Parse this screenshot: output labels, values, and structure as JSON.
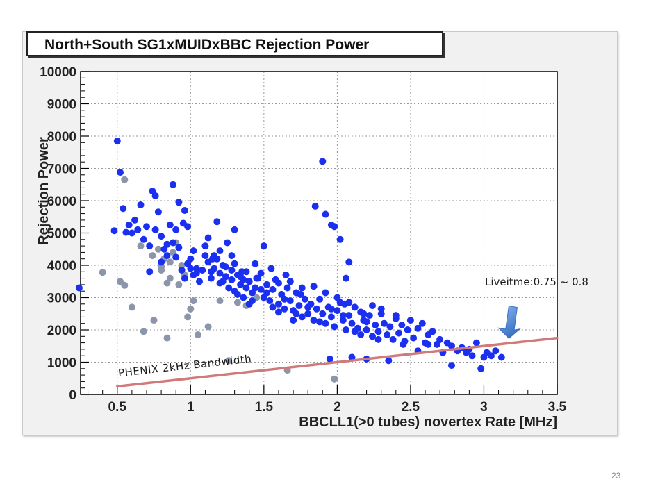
{
  "slide_number": "23",
  "chart_data": {
    "type": "scatter",
    "title": "North+South SG1xMUIDxBBC Rejection Power",
    "xlabel": "BBCLL1(>0 tubes) novertex Rate [MHz]",
    "ylabel": "Rejection Power",
    "xlim": [
      0.25,
      3.5
    ],
    "ylim": [
      0,
      10000
    ],
    "x_ticks": [
      0.5,
      1,
      1.5,
      2,
      2.5,
      3,
      3.5
    ],
    "y_ticks": [
      0,
      1000,
      2000,
      3000,
      4000,
      5000,
      6000,
      7000,
      8000,
      9000,
      10000
    ],
    "grid": true,
    "colors": {
      "blue": "#1a2ff0",
      "gray": "#8c96aa",
      "line": "#d07a7a",
      "arrow": "#4f86d6"
    },
    "series": [
      {
        "color": "blue",
        "points": [
          [
            0.5,
            7850
          ],
          [
            0.52,
            6880
          ],
          [
            0.54,
            5760
          ],
          [
            0.56,
            5020
          ],
          [
            0.48,
            5070
          ],
          [
            0.58,
            5250
          ],
          [
            0.6,
            5000
          ],
          [
            0.62,
            5400
          ],
          [
            0.64,
            5100
          ],
          [
            0.66,
            5870
          ],
          [
            0.68,
            4800
          ],
          [
            0.7,
            5200
          ],
          [
            0.72,
            4600
          ],
          [
            0.74,
            6300
          ],
          [
            0.76,
            6150
          ],
          [
            0.78,
            5650
          ],
          [
            0.8,
            4900
          ],
          [
            0.82,
            4500
          ],
          [
            0.84,
            4300
          ],
          [
            0.86,
            5250
          ],
          [
            0.88,
            4700
          ],
          [
            0.9,
            4250
          ],
          [
            0.92,
            4550
          ],
          [
            0.94,
            3850
          ],
          [
            0.96,
            3600
          ],
          [
            0.98,
            4050
          ],
          [
            1.0,
            4200
          ],
          [
            1.02,
            3700
          ],
          [
            1.04,
            3900
          ],
          [
            0.72,
            3800
          ],
          [
            0.76,
            5100
          ],
          [
            0.8,
            4100
          ],
          [
            0.84,
            4650
          ],
          [
            0.88,
            6500
          ],
          [
            0.9,
            5100
          ],
          [
            0.92,
            5950
          ],
          [
            0.96,
            5700
          ],
          [
            0.95,
            5300
          ],
          [
            0.98,
            5200
          ],
          [
            1.0,
            3900
          ],
          [
            1.02,
            4450
          ],
          [
            1.04,
            3750
          ],
          [
            1.06,
            3500
          ],
          [
            1.08,
            3850
          ],
          [
            1.1,
            4300
          ],
          [
            1.12,
            4100
          ],
          [
            1.14,
            3600
          ],
          [
            1.16,
            3900
          ],
          [
            1.18,
            4200
          ],
          [
            1.2,
            3750
          ],
          [
            1.22,
            3500
          ],
          [
            1.24,
            3950
          ],
          [
            1.26,
            3300
          ],
          [
            1.28,
            3550
          ],
          [
            1.3,
            3200
          ],
          [
            1.32,
            3700
          ],
          [
            1.34,
            3400
          ],
          [
            1.36,
            3000
          ],
          [
            1.38,
            3300
          ],
          [
            1.4,
            3500
          ],
          [
            1.42,
            3150
          ],
          [
            1.44,
            4050
          ],
          [
            1.46,
            3600
          ],
          [
            1.48,
            3250
          ],
          [
            1.5,
            3000
          ],
          [
            1.52,
            3400
          ],
          [
            1.54,
            2900
          ],
          [
            1.56,
            3250
          ],
          [
            1.58,
            3550
          ],
          [
            1.6,
            2800
          ],
          [
            1.62,
            3100
          ],
          [
            1.64,
            2650
          ],
          [
            1.66,
            3300
          ],
          [
            1.68,
            2900
          ],
          [
            1.7,
            2600
          ],
          [
            1.72,
            3150
          ],
          [
            1.74,
            2750
          ],
          [
            1.76,
            2400
          ],
          [
            1.78,
            2950
          ],
          [
            1.8,
            2500
          ],
          [
            1.82,
            2800
          ],
          [
            1.84,
            2300
          ],
          [
            1.86,
            2650
          ],
          [
            1.88,
            2950
          ],
          [
            1.9,
            2500
          ],
          [
            1.92,
            2200
          ],
          [
            1.94,
            2700
          ],
          [
            1.96,
            2400
          ],
          [
            1.98,
            2100
          ],
          [
            2.0,
            2600
          ],
          [
            2.02,
            2850
          ],
          [
            2.04,
            2300
          ],
          [
            2.06,
            2000
          ],
          [
            2.08,
            2450
          ],
          [
            2.1,
            2200
          ],
          [
            2.12,
            2700
          ],
          [
            2.14,
            2050
          ],
          [
            2.16,
            1850
          ],
          [
            2.18,
            2300
          ],
          [
            2.2,
            2000
          ],
          [
            2.22,
            2450
          ],
          [
            2.24,
            1800
          ],
          [
            2.26,
            2150
          ],
          [
            2.28,
            1950
          ],
          [
            2.3,
            2500
          ],
          [
            2.32,
            2200
          ],
          [
            2.34,
            1850
          ],
          [
            2.36,
            2100
          ],
          [
            2.38,
            1700
          ],
          [
            2.4,
            2350
          ],
          [
            2.42,
            1900
          ],
          [
            2.44,
            2150
          ],
          [
            2.46,
            1650
          ],
          [
            2.48,
            2000
          ],
          [
            2.5,
            2300
          ],
          [
            2.52,
            1750
          ],
          [
            2.55,
            2050
          ],
          [
            2.58,
            2200
          ],
          [
            2.6,
            1600
          ],
          [
            2.62,
            1850
          ],
          [
            1.1,
            4600
          ],
          [
            1.12,
            4850
          ],
          [
            1.15,
            4200
          ],
          [
            1.18,
            5350
          ],
          [
            1.2,
            4450
          ],
          [
            1.22,
            4000
          ],
          [
            1.25,
            4700
          ],
          [
            1.28,
            4300
          ],
          [
            1.3,
            4050
          ],
          [
            1.35,
            3800
          ],
          [
            1.14,
            3800
          ],
          [
            1.16,
            4300
          ],
          [
            1.2,
            3450
          ],
          [
            1.24,
            3650
          ],
          [
            1.28,
            3850
          ],
          [
            1.32,
            3100
          ],
          [
            1.36,
            3550
          ],
          [
            1.4,
            2800
          ],
          [
            1.44,
            3300
          ],
          [
            1.48,
            3750
          ],
          [
            1.52,
            3150
          ],
          [
            1.56,
            2700
          ],
          [
            1.6,
            3450
          ],
          [
            1.64,
            2950
          ],
          [
            1.68,
            3500
          ],
          [
            1.72,
            2500
          ],
          [
            1.76,
            3300
          ],
          [
            1.8,
            2700
          ],
          [
            1.84,
            3350
          ],
          [
            1.88,
            2250
          ],
          [
            1.92,
            3150
          ],
          [
            1.96,
            2650
          ],
          [
            2.0,
            3000
          ],
          [
            2.04,
            2450
          ],
          [
            2.08,
            2850
          ],
          [
            2.12,
            1950
          ],
          [
            2.16,
            2550
          ],
          [
            2.2,
            2250
          ],
          [
            2.24,
            2750
          ],
          [
            2.28,
            1700
          ],
          [
            1.85,
            5830
          ],
          [
            1.9,
            7220
          ],
          [
            1.92,
            5580
          ],
          [
            1.96,
            5250
          ],
          [
            1.98,
            5200
          ],
          [
            2.02,
            4800
          ],
          [
            2.06,
            3600
          ],
          [
            2.08,
            4100
          ],
          [
            1.5,
            4600
          ],
          [
            1.3,
            5100
          ],
          [
            2.65,
            1950
          ],
          [
            2.68,
            1550
          ],
          [
            2.7,
            1700
          ],
          [
            2.75,
            1600
          ],
          [
            2.78,
            1500
          ],
          [
            2.82,
            1350
          ],
          [
            2.85,
            1450
          ],
          [
            2.88,
            1300
          ],
          [
            2.9,
            1400
          ],
          [
            2.95,
            1600
          ],
          [
            3.0,
            1150
          ],
          [
            3.02,
            1300
          ],
          [
            3.05,
            1200
          ],
          [
            3.08,
            1350
          ],
          [
            3.12,
            1150
          ],
          [
            2.98,
            800
          ],
          [
            2.92,
            1200
          ],
          [
            2.78,
            900
          ],
          [
            2.72,
            1300
          ],
          [
            2.62,
            1550
          ],
          [
            2.35,
            1050
          ],
          [
            2.2,
            1100
          ],
          [
            2.1,
            1150
          ],
          [
            1.95,
            1100
          ],
          [
            2.55,
            1350
          ],
          [
            2.45,
            1550
          ],
          [
            2.4,
            2450
          ],
          [
            2.3,
            2650
          ],
          [
            2.18,
            2500
          ],
          [
            2.05,
            2800
          ],
          [
            0.24,
            3300
          ],
          [
            1.6,
            2550
          ],
          [
            1.7,
            2300
          ],
          [
            1.75,
            3100
          ],
          [
            1.65,
            3700
          ],
          [
            1.55,
            3900
          ],
          [
            1.45,
            3600
          ],
          [
            1.42,
            2900
          ],
          [
            1.38,
            3800
          ],
          [
            1.34,
            3650
          ]
        ]
      },
      {
        "color": "gray",
        "points": [
          [
            0.55,
            6650
          ],
          [
            0.4,
            3780
          ],
          [
            0.52,
            3500
          ],
          [
            0.55,
            3380
          ],
          [
            0.6,
            2700
          ],
          [
            0.66,
            4600
          ],
          [
            0.68,
            1950
          ],
          [
            0.75,
            2300
          ],
          [
            0.78,
            4500
          ],
          [
            0.8,
            3950
          ],
          [
            0.82,
            4200
          ],
          [
            0.84,
            3450
          ],
          [
            0.86,
            3600
          ],
          [
            0.88,
            4400
          ],
          [
            0.9,
            4700
          ],
          [
            0.92,
            3400
          ],
          [
            0.94,
            4000
          ],
          [
            0.96,
            3700
          ],
          [
            0.98,
            2400
          ],
          [
            1.0,
            2650
          ],
          [
            1.02,
            2900
          ],
          [
            0.84,
            1750
          ],
          [
            1.05,
            1850
          ],
          [
            1.12,
            2100
          ],
          [
            1.2,
            2900
          ],
          [
            1.26,
            1050
          ],
          [
            1.32,
            2850
          ],
          [
            1.38,
            2750
          ],
          [
            1.45,
            3000
          ],
          [
            1.66,
            750
          ],
          [
            1.98,
            480
          ],
          [
            0.86,
            4100
          ],
          [
            0.8,
            3850
          ],
          [
            0.74,
            4300
          ]
        ]
      }
    ],
    "annotations": [
      {
        "type": "line",
        "label": "PHENIX 2kHz Bandwidth",
        "from": [
          0.5,
          250
        ],
        "to": [
          3.5,
          1750
        ]
      },
      {
        "type": "arrow",
        "label": "Liveitme:0.75 ~ 0.8",
        "target": [
          3.18,
          1650
        ]
      }
    ]
  }
}
